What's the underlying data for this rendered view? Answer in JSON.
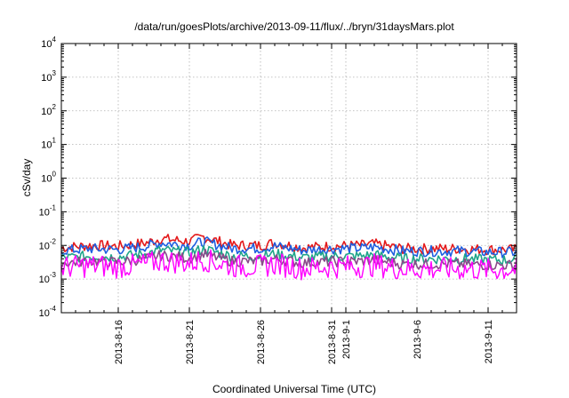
{
  "chart_data": {
    "type": "line",
    "title": "/data/run/goesPlots/archive/2013-09-11/flux/../bryn/31daysMars.plot",
    "xlabel": "Coordinated Universal Time (UTC)",
    "ylabel": "cSv/day",
    "yscale": "log",
    "ylim": [
      0.0001,
      10000
    ],
    "xlim": [
      "2013-08-12",
      "2013-09-13"
    ],
    "grid": true,
    "legend": "none",
    "y_ticks": [
      {
        "base": "10",
        "exp": "-4"
      },
      {
        "base": "10",
        "exp": "-3"
      },
      {
        "base": "10",
        "exp": "-2"
      },
      {
        "base": "10",
        "exp": "-1"
      },
      {
        "base": "10",
        "exp": "0"
      },
      {
        "base": "10",
        "exp": "1"
      },
      {
        "base": "10",
        "exp": "2"
      },
      {
        "base": "10",
        "exp": "3"
      },
      {
        "base": "10",
        "exp": "4"
      }
    ],
    "x_ticks": [
      {
        "date": "2013-08-16",
        "lines": [
          "2013-8-16"
        ]
      },
      {
        "date": "2013-08-21",
        "lines": [
          "2013-8-21"
        ]
      },
      {
        "date": "2013-08-26",
        "lines": [
          "2013-8-26"
        ]
      },
      {
        "date": "2013-08-31",
        "lines": [
          "2013-8-31"
        ]
      },
      {
        "date": "2013-09-01",
        "lines": [
          "2013-9-1"
        ]
      },
      {
        "date": "2013-09-06",
        "lines": [
          "2013-9-6"
        ]
      },
      {
        "date": "2013-09-11",
        "lines": [
          "2013-9-11"
        ]
      }
    ],
    "series": [
      {
        "color": "#e41a1c",
        "dates": [
          "2013-08-12",
          "2013-08-14",
          "2013-08-16",
          "2013-08-18",
          "2013-08-19",
          "2013-08-21",
          "2013-08-22",
          "2013-08-24",
          "2013-08-26",
          "2013-08-27",
          "2013-08-29",
          "2013-08-31",
          "2013-09-02",
          "2013-09-03",
          "2013-09-05",
          "2013-09-07",
          "2013-09-09",
          "2013-09-11",
          "2013-09-13"
        ],
        "values": [
          0.0085,
          0.01,
          0.0095,
          0.012,
          0.016,
          0.013,
          0.018,
          0.01,
          0.01,
          0.012,
          0.0085,
          0.0095,
          0.01,
          0.011,
          0.008,
          0.008,
          0.008,
          0.0075,
          0.0075
        ]
      },
      {
        "color": "#1f5fe0",
        "dates": [
          "2013-08-12",
          "2013-08-14",
          "2013-08-16",
          "2013-08-18",
          "2013-08-19",
          "2013-08-21",
          "2013-08-22",
          "2013-08-24",
          "2013-08-26",
          "2013-08-27",
          "2013-08-29",
          "2013-08-31",
          "2013-09-02",
          "2013-09-03",
          "2013-09-05",
          "2013-09-07",
          "2013-09-09",
          "2013-09-11",
          "2013-09-13"
        ],
        "values": [
          0.007,
          0.008,
          0.0075,
          0.0095,
          0.012,
          0.01,
          0.013,
          0.0082,
          0.0082,
          0.0095,
          0.0072,
          0.008,
          0.0082,
          0.009,
          0.0068,
          0.0068,
          0.0068,
          0.0063,
          0.0063
        ]
      },
      {
        "color": "#20a58a",
        "dates": [
          "2013-08-12",
          "2013-08-14",
          "2013-08-16",
          "2013-08-18",
          "2013-08-19",
          "2013-08-21",
          "2013-08-22",
          "2013-08-24",
          "2013-08-26",
          "2013-08-27",
          "2013-08-29",
          "2013-08-31",
          "2013-09-02",
          "2013-09-03",
          "2013-09-05",
          "2013-09-07",
          "2013-09-09",
          "2013-09-11",
          "2013-09-13"
        ],
        "values": [
          0.0042,
          0.0048,
          0.0045,
          0.0058,
          0.0072,
          0.006,
          0.0078,
          0.0048,
          0.0048,
          0.0056,
          0.0043,
          0.0047,
          0.0048,
          0.0053,
          0.004,
          0.004,
          0.004,
          0.0037,
          0.0037
        ]
      },
      {
        "color": "#8a4a8a",
        "dates": [
          "2013-08-12",
          "2013-08-14",
          "2013-08-16",
          "2013-08-18",
          "2013-08-19",
          "2013-08-21",
          "2013-08-22",
          "2013-08-24",
          "2013-08-26",
          "2013-08-27",
          "2013-08-29",
          "2013-08-31",
          "2013-09-02",
          "2013-09-03",
          "2013-09-05",
          "2013-09-07",
          "2013-09-09",
          "2013-09-11",
          "2013-09-13"
        ],
        "values": [
          0.003,
          0.0034,
          0.0032,
          0.004,
          0.005,
          0.0042,
          0.0055,
          0.0034,
          0.0034,
          0.004,
          0.003,
          0.0033,
          0.0034,
          0.0037,
          0.0028,
          0.0028,
          0.0028,
          0.0026,
          0.0026
        ]
      },
      {
        "color": "#ff00ff",
        "dates": [
          "2013-08-12",
          "2013-08-14",
          "2013-08-16",
          "2013-08-18",
          "2013-08-19",
          "2013-08-21",
          "2013-08-22",
          "2013-08-24",
          "2013-08-26",
          "2013-08-27",
          "2013-08-29",
          "2013-08-31",
          "2013-09-02",
          "2013-09-03",
          "2013-09-05",
          "2013-09-07",
          "2013-09-09",
          "2013-09-11",
          "2013-09-13"
        ],
        "values": [
          0.0022,
          0.0025,
          0.0023,
          0.0028,
          0.0035,
          0.003,
          0.0038,
          0.0024,
          0.0024,
          0.0028,
          0.0021,
          0.0023,
          0.0024,
          0.0026,
          0.002,
          0.002,
          0.002,
          0.0019,
          0.0019
        ]
      }
    ]
  }
}
